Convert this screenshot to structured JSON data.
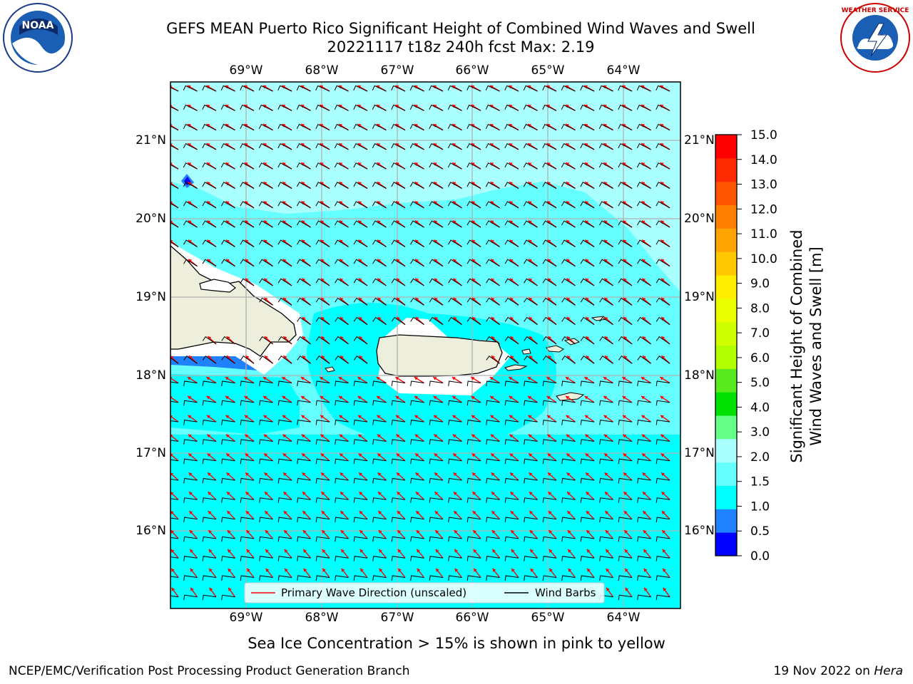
{
  "title": {
    "line1": "GEFS MEAN Puerto Rico Significant Height of Combined Wind Waves and Swell",
    "line2": "20221117 t18z 240h fcst   Max: 2.19"
  },
  "map": {
    "lon_ticks": [
      "69°W",
      "68°W",
      "67°W",
      "66°W",
      "65°W",
      "64°W"
    ],
    "lat_ticks": [
      "21°N",
      "20°N",
      "19°N",
      "18°N",
      "17°N",
      "16°N"
    ],
    "legend": {
      "wave_label": "Primary Wave Direction (unscaled)",
      "barb_label": "Wind Barbs"
    },
    "colors": {
      "land": "#eeeedd",
      "coast": "#000000",
      "grid": "#b0b0b0",
      "arrow": "#ff0000",
      "barb": "#000000"
    }
  },
  "colorbar": {
    "label_line1": "Significant Height of Combined",
    "label_line2": "Wind Waves and Swell [m]",
    "ticks": [
      "15.0",
      "14.0",
      "13.0",
      "12.0",
      "11.0",
      "10.0",
      "9.0",
      "8.0",
      "7.0",
      "6.0",
      "5.0",
      "4.0",
      "3.0",
      "2.0",
      "1.5",
      "1.0",
      "0.5",
      "0.0"
    ],
    "colors_top_to_bottom": [
      "#ff0000",
      "#ff2a00",
      "#ff5500",
      "#ff7f00",
      "#ffa400",
      "#ffc800",
      "#ffee00",
      "#eaff00",
      "#d0ff00",
      "#b1ff00",
      "#5aeb1f",
      "#00e000",
      "#66ff88",
      "#aaffff",
      "#66ffff",
      "#00ffff",
      "#2081ff",
      "#0000ff"
    ]
  },
  "logos": {
    "left": "NOAA",
    "right": "NATIONAL WEATHER SERVICE"
  },
  "footer": {
    "subtitle": "Sea Ice Concentration > 15% is shown in pink to yellow",
    "left": "NCEP/EMC/Verification Post Processing Product Generation Branch",
    "right_prefix": "19 Nov 2022 on ",
    "right_host": "Hera"
  }
}
